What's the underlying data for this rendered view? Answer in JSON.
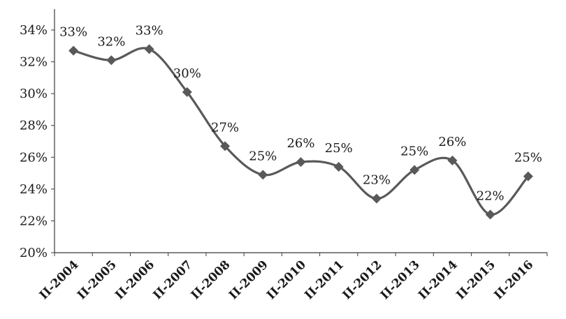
{
  "chart_data": {
    "type": "line",
    "categories": [
      "II-2004",
      "II-2005",
      "II-2006",
      "II-2007",
      "II-2008",
      "II-2009",
      "II-2010",
      "II-2011",
      "II-2012",
      "II-2013",
      "II-2014",
      "II-2015",
      "II-2016"
    ],
    "series": [
      {
        "values": [
          32.7,
          32.1,
          32.8,
          30.1,
          26.7,
          24.9,
          25.7,
          25.4,
          23.4,
          25.2,
          25.8,
          22.4,
          24.8
        ],
        "labels": [
          "33%",
          "32%",
          "33%",
          "30%",
          "27%",
          "25%",
          "26%",
          "25%",
          "23%",
          "25%",
          "26%",
          "22%",
          "25%"
        ]
      }
    ],
    "y_ticks": [
      "20%",
      "22%",
      "24%",
      "26%",
      "28%",
      "30%",
      "32%",
      "34%"
    ],
    "ylim": [
      20,
      34
    ],
    "title": "",
    "xlabel": "",
    "ylabel": "",
    "grid": false,
    "legend": "none",
    "colors": {
      "line": "#595959",
      "marker": "#595959",
      "axis": "#3a3a3a"
    }
  }
}
